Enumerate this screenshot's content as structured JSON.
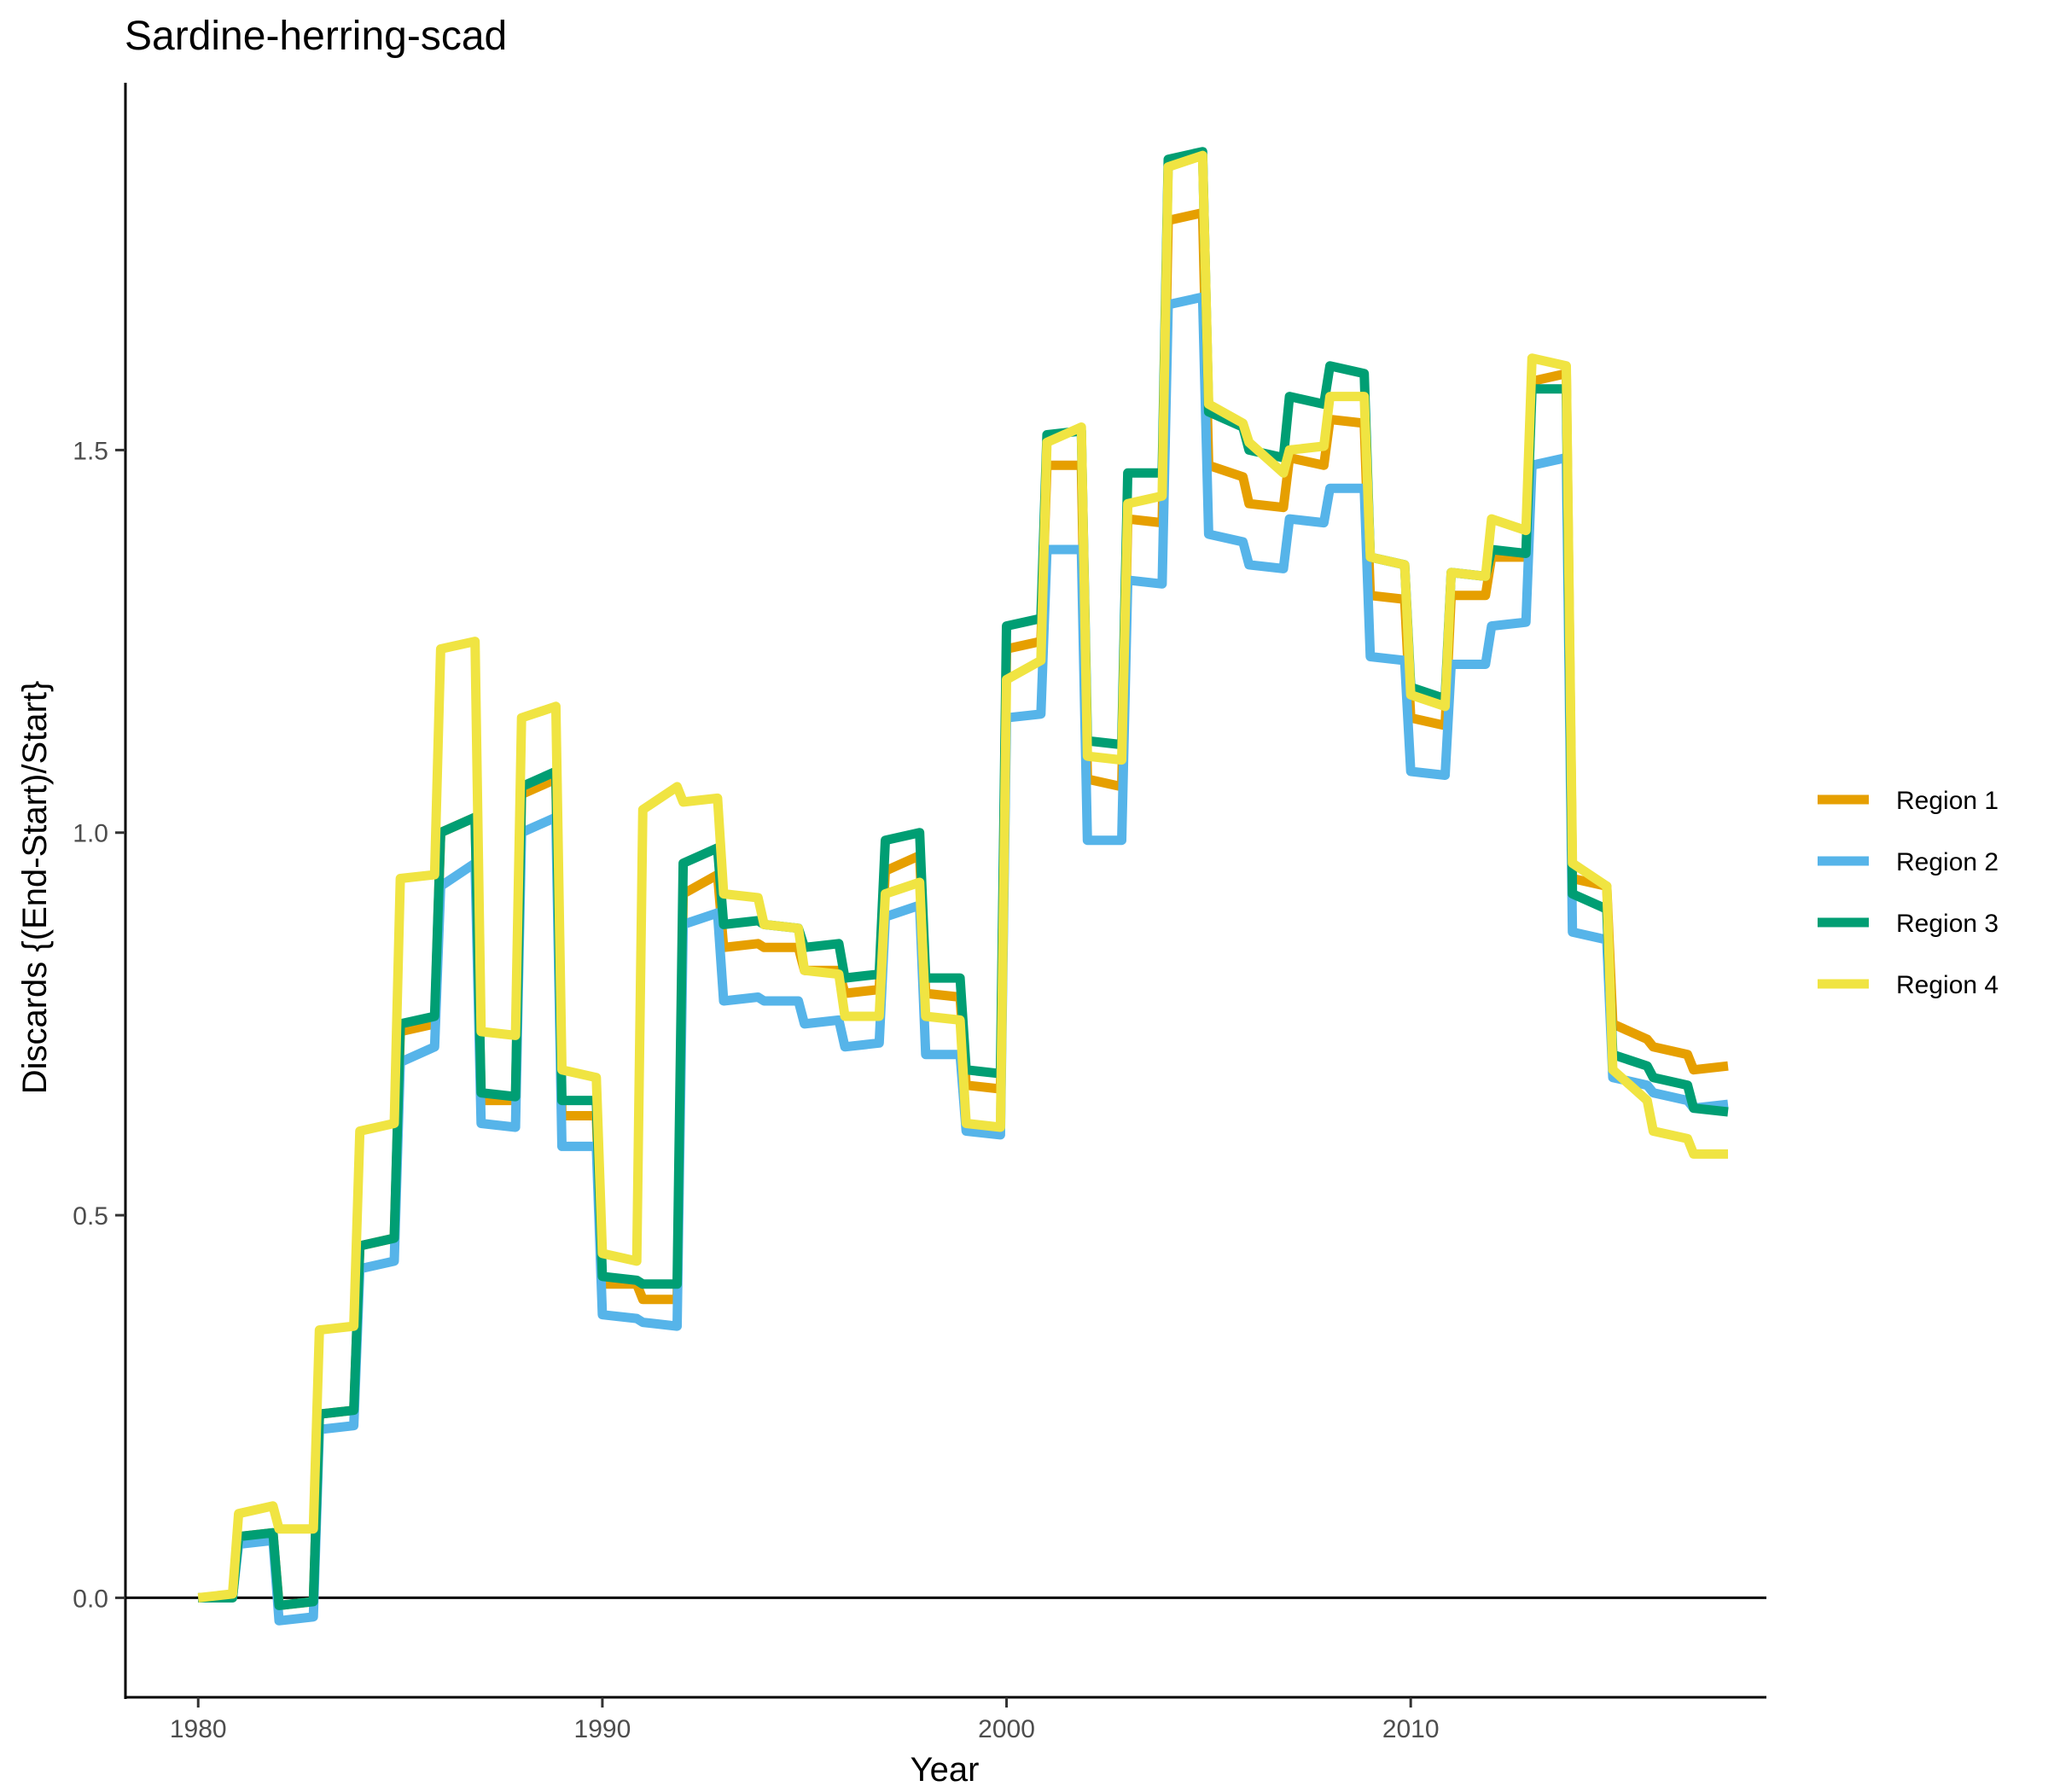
{
  "chart_data": {
    "type": "line",
    "title": "Sardine-herring-scad",
    "xlabel": "Year",
    "ylabel": "Discards {(End-Start)/Start}",
    "xlim": [
      1978.2,
      2018.8
    ],
    "ylim": [
      -0.13,
      1.98
    ],
    "xticks": [
      1980,
      1990,
      2000,
      2010
    ],
    "yticks": [
      0.0,
      0.5,
      1.0,
      1.5
    ],
    "ytick_labels": [
      "0.0",
      "0.5",
      "1.0",
      "1.5"
    ],
    "grid": false,
    "zero_line": true,
    "legend_position": "right",
    "x": [
      1980,
      1981,
      1982,
      1983,
      1984,
      1985,
      1986,
      1987,
      1988,
      1989,
      1990,
      1991,
      1992,
      1993,
      1994,
      1995,
      1996,
      1997,
      1998,
      1999,
      2000,
      2001,
      2002,
      2003,
      2004,
      2005,
      2006,
      2007,
      2008,
      2009,
      2010,
      2011,
      2012,
      2013,
      2014,
      2015,
      2016,
      2017
    ],
    "series": [
      {
        "name": "Region 1",
        "color": "#E69F00",
        "values": [
          0.0,
          0.08,
          -0.01,
          0.24,
          0.46,
          0.74,
          1.0,
          0.65,
          1.05,
          0.63,
          0.41,
          0.39,
          0.92,
          0.85,
          0.85,
          0.82,
          0.79,
          0.95,
          0.79,
          0.67,
          1.24,
          1.48,
          1.07,
          1.41,
          1.8,
          1.48,
          1.43,
          1.49,
          1.54,
          1.31,
          1.15,
          1.31,
          1.36,
          1.59,
          0.94,
          0.75,
          0.72,
          0.69
        ],
        "mid": [
          0.0,
          0.085,
          -0.005,
          0.245,
          0.47,
          0.75,
          1.02,
          0.65,
          1.07,
          0.63,
          0.41,
          0.39,
          0.945,
          0.855,
          0.85,
          0.82,
          0.795,
          0.97,
          0.785,
          0.665,
          1.25,
          1.48,
          1.06,
          1.405,
          1.81,
          1.465,
          1.425,
          1.48,
          1.535,
          1.305,
          1.14,
          1.31,
          1.36,
          1.6,
          0.93,
          0.73,
          0.71,
          0.695
        ]
      },
      {
        "name": "Region 2",
        "color": "#56B4E9",
        "values": [
          0.0,
          0.07,
          -0.03,
          0.22,
          0.43,
          0.7,
          0.93,
          0.62,
          1.0,
          0.59,
          0.37,
          0.36,
          0.88,
          0.78,
          0.78,
          0.75,
          0.72,
          0.89,
          0.71,
          0.61,
          1.15,
          1.37,
          0.99,
          1.33,
          1.69,
          1.39,
          1.35,
          1.41,
          1.45,
          1.23,
          1.08,
          1.22,
          1.27,
          1.48,
          0.87,
          0.68,
          0.66,
          0.64
        ],
        "mid": [
          0.0,
          0.075,
          -0.025,
          0.225,
          0.44,
          0.72,
          0.96,
          0.615,
          1.02,
          0.59,
          0.365,
          0.355,
          0.895,
          0.785,
          0.78,
          0.755,
          0.725,
          0.905,
          0.71,
          0.605,
          1.155,
          1.37,
          0.99,
          1.325,
          1.7,
          1.38,
          1.345,
          1.405,
          1.45,
          1.225,
          1.075,
          1.22,
          1.275,
          1.49,
          0.86,
          0.67,
          0.65,
          0.645
        ]
      },
      {
        "name": "Region 3",
        "color": "#009E73",
        "values": [
          0.0,
          0.08,
          -0.01,
          0.24,
          0.46,
          0.75,
          1.0,
          0.66,
          1.06,
          0.65,
          0.42,
          0.41,
          0.96,
          0.88,
          0.88,
          0.85,
          0.81,
          0.99,
          0.81,
          0.69,
          1.27,
          1.52,
          1.12,
          1.47,
          1.88,
          1.55,
          1.5,
          1.57,
          1.61,
          1.36,
          1.19,
          1.34,
          1.37,
          1.58,
          0.92,
          0.71,
          0.68,
          0.64
        ],
        "mid": [
          0.0,
          0.085,
          -0.005,
          0.245,
          0.47,
          0.76,
          1.02,
          0.655,
          1.08,
          0.65,
          0.415,
          0.41,
          0.98,
          0.885,
          0.875,
          0.855,
          0.815,
          1.0,
          0.81,
          0.685,
          1.28,
          1.525,
          1.115,
          1.47,
          1.89,
          1.53,
          1.49,
          1.56,
          1.6,
          1.35,
          1.175,
          1.335,
          1.365,
          1.58,
          0.9,
          0.695,
          0.67,
          0.635
        ]
      },
      {
        "name": "Region 4",
        "color": "#F0E442",
        "values": [
          0.0,
          0.11,
          0.09,
          0.35,
          0.61,
          0.94,
          1.24,
          0.74,
          1.15,
          0.69,
          0.45,
          1.03,
          1.04,
          0.92,
          0.88,
          0.82,
          0.76,
          0.92,
          0.76,
          0.62,
          1.2,
          1.51,
          1.1,
          1.43,
          1.87,
          1.56,
          1.51,
          1.5,
          1.57,
          1.36,
          1.18,
          1.34,
          1.41,
          1.62,
          0.96,
          0.69,
          0.61,
          0.58
        ],
        "mid": [
          0.005,
          0.12,
          0.09,
          0.355,
          0.62,
          0.945,
          1.25,
          0.735,
          1.165,
          0.68,
          0.44,
          1.06,
          1.045,
          0.915,
          0.875,
          0.815,
          0.76,
          0.935,
          0.755,
          0.615,
          1.225,
          1.53,
          1.095,
          1.44,
          1.885,
          1.535,
          1.47,
          1.505,
          1.57,
          1.35,
          1.165,
          1.335,
          1.395,
          1.61,
          0.93,
          0.65,
          0.6,
          0.58
        ]
      }
    ]
  }
}
